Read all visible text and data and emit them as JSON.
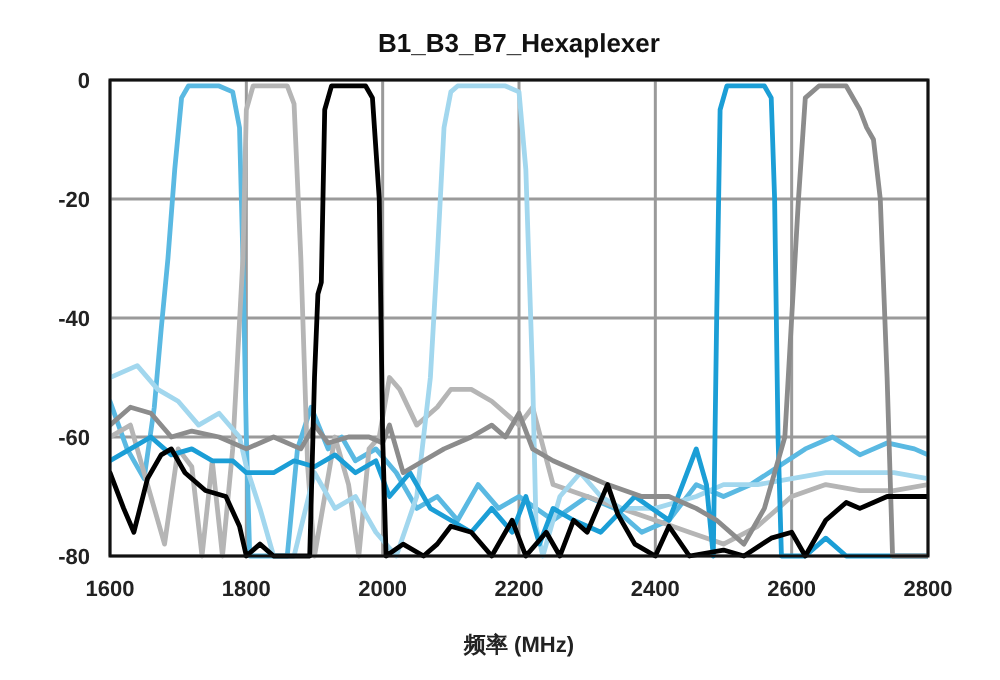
{
  "chart_data": {
    "type": "line",
    "title": "B1_B3_B7_Hexaplexer",
    "xlabel": "频率 (MHz)",
    "xlim": [
      1600,
      2800
    ],
    "ylim": [
      -80,
      0
    ],
    "xticks": [
      1600,
      1800,
      2000,
      2200,
      2400,
      2600,
      2800
    ],
    "yticks": [
      -80,
      -60,
      -40,
      -20,
      0
    ],
    "grid": true,
    "line_style": "solid",
    "series": [
      {
        "color": "#5ab9e2",
        "x": [
          1600,
          1625,
          1650,
          1665,
          1675,
          1685,
          1695,
          1705,
          1715,
          1760,
          1780,
          1790,
          1795,
          1800,
          1805,
          1840,
          1860,
          1875,
          1895,
          1920,
          1940,
          1960,
          1990,
          2020,
          2050,
          2080,
          2110,
          2140,
          2170,
          2200,
          2250,
          2300,
          2340,
          2380,
          2420,
          2460,
          2500,
          2540,
          2580,
          2620,
          2660,
          2700,
          2740,
          2780,
          2800
        ],
        "values": [
          -54,
          -62,
          -67,
          -55,
          -42,
          -30,
          -15,
          -3,
          -1,
          -1,
          -2,
          -8,
          -30,
          -60,
          -80,
          -80,
          -80,
          -62,
          -55,
          -62,
          -60,
          -64,
          -62,
          -66,
          -72,
          -70,
          -74,
          -68,
          -72,
          -70,
          -74,
          -70,
          -72,
          -76,
          -74,
          -68,
          -70,
          -68,
          -65,
          -62,
          -60,
          -63,
          -61,
          -62,
          -63
        ]
      },
      {
        "color": "#b5b5b5",
        "x": [
          1600,
          1630,
          1660,
          1680,
          1700,
          1720,
          1735,
          1750,
          1765,
          1780,
          1795,
          1800,
          1810,
          1860,
          1870,
          1880,
          1890,
          1900,
          1915,
          1930,
          1950,
          1965,
          1980,
          1995,
          2010,
          2025,
          2050,
          2080,
          2100,
          2130,
          2160,
          2200,
          2220,
          2250,
          2300,
          2350,
          2400,
          2450,
          2500,
          2550,
          2600,
          2650,
          2700,
          2750,
          2800
        ],
        "values": [
          -60,
          -58,
          -70,
          -78,
          -62,
          -65,
          -80,
          -64,
          -80,
          -62,
          -30,
          -5,
          -1,
          -1,
          -4,
          -30,
          -65,
          -80,
          -70,
          -60,
          -68,
          -80,
          -62,
          -60,
          -50,
          -52,
          -58,
          -55,
          -52,
          -52,
          -54,
          -58,
          -55,
          -68,
          -70,
          -72,
          -74,
          -76,
          -78,
          -75,
          -70,
          -68,
          -69,
          -69,
          -68
        ]
      },
      {
        "color": "#a2d7ee",
        "x": [
          1600,
          1640,
          1670,
          1700,
          1730,
          1760,
          1790,
          1800,
          1820,
          1840,
          1870,
          1900,
          1930,
          1960,
          1990,
          2020,
          2050,
          2070,
          2080,
          2090,
          2100,
          2110,
          2180,
          2200,
          2210,
          2220,
          2225,
          2235,
          2260,
          2290,
          2320,
          2350,
          2400,
          2460,
          2500,
          2550,
          2600,
          2650,
          2700,
          2750,
          2800
        ],
        "values": [
          -50,
          -48,
          -52,
          -54,
          -58,
          -56,
          -60,
          -65,
          -72,
          -80,
          -80,
          -66,
          -72,
          -70,
          -76,
          -80,
          -70,
          -50,
          -30,
          -8,
          -2,
          -1,
          -1,
          -2,
          -15,
          -50,
          -75,
          -80,
          -70,
          -66,
          -70,
          -72,
          -72,
          -70,
          -68,
          -68,
          -67,
          -66,
          -66,
          -66,
          -67
        ]
      },
      {
        "color": "#1b9ed6",
        "x": [
          1600,
          1630,
          1660,
          1690,
          1720,
          1750,
          1780,
          1800,
          1840,
          1870,
          1900,
          1930,
          1960,
          1990,
          2010,
          2040,
          2070,
          2100,
          2130,
          2160,
          2190,
          2210,
          2230,
          2250,
          2280,
          2320,
          2370,
          2420,
          2460,
          2475,
          2485,
          2490,
          2495,
          2505,
          2560,
          2570,
          2575,
          2580,
          2585,
          2620,
          2650,
          2680,
          2800
        ],
        "values": [
          -64,
          -62,
          -60,
          -63,
          -62,
          -64,
          -64,
          -66,
          -66,
          -64,
          -65,
          -63,
          -66,
          -64,
          -70,
          -66,
          -72,
          -74,
          -76,
          -72,
          -76,
          -70,
          -78,
          -72,
          -74,
          -76,
          -70,
          -74,
          -62,
          -68,
          -80,
          -40,
          -5,
          -1,
          -1,
          -3,
          -20,
          -60,
          -80,
          -80,
          -77,
          -80,
          -80
        ]
      },
      {
        "color": "#8c8c8c",
        "x": [
          1600,
          1630,
          1660,
          1690,
          1720,
          1760,
          1800,
          1840,
          1880,
          1900,
          1920,
          1950,
          1980,
          2000,
          2010,
          2030,
          2060,
          2090,
          2130,
          2160,
          2180,
          2200,
          2220,
          2250,
          2290,
          2330,
          2380,
          2420,
          2460,
          2490,
          2530,
          2560,
          2590,
          2610,
          2620,
          2640,
          2680,
          2700,
          2710,
          2720,
          2730,
          2740,
          2748,
          2800
        ],
        "values": [
          -58,
          -55,
          -56,
          -60,
          -59,
          -60,
          -62,
          -60,
          -62,
          -58,
          -61,
          -60,
          -60,
          -61,
          -58,
          -66,
          -64,
          -62,
          -60,
          -58,
          -60,
          -56,
          -62,
          -64,
          -66,
          -68,
          -70,
          -70,
          -72,
          -74,
          -78,
          -72,
          -60,
          -20,
          -3,
          -1,
          -1,
          -5,
          -8,
          -10,
          -20,
          -50,
          -80,
          -80
        ]
      },
      {
        "color": "#000000",
        "x": [
          1600,
          1620,
          1635,
          1655,
          1675,
          1690,
          1710,
          1740,
          1770,
          1790,
          1800,
          1820,
          1840,
          1880,
          1893,
          1900,
          1905,
          1910,
          1915,
          1925,
          1975,
          1985,
          1995,
          2000,
          2005,
          2030,
          2060,
          2080,
          2100,
          2130,
          2160,
          2190,
          2210,
          2240,
          2260,
          2280,
          2300,
          2330,
          2345,
          2370,
          2400,
          2420,
          2450,
          2500,
          2530,
          2570,
          2600,
          2620,
          2650,
          2680,
          2700,
          2740,
          2800
        ],
        "values": [
          -66,
          -72,
          -76,
          -67,
          -63,
          -62,
          -66,
          -69,
          -70,
          -75,
          -80,
          -78,
          -80,
          -80,
          -80,
          -50,
          -36,
          -34,
          -5,
          -1,
          -1,
          -3,
          -20,
          -60,
          -80,
          -78,
          -80,
          -78,
          -75,
          -76,
          -80,
          -74,
          -80,
          -76,
          -80,
          -74,
          -76,
          -68,
          -73,
          -78,
          -80,
          -75,
          -80,
          -79,
          -80,
          -77,
          -76,
          -80,
          -74,
          -71,
          -72,
          -70,
          -70
        ]
      }
    ]
  }
}
